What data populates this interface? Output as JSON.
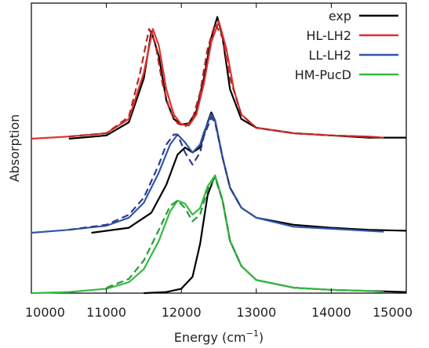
{
  "chart_data": {
    "type": "line",
    "xlabel": "Energy (cm",
    "xlabel_sup": "−1",
    "xlabel_close": ")",
    "ylabel": "Absorption",
    "xlim": [
      10000,
      15000
    ],
    "x_ticks": [
      10000,
      11000,
      12000,
      13000,
      14000,
      15000
    ],
    "x_tick_labels": [
      "10000",
      "11000",
      "12000",
      "13000",
      "14000",
      "15000"
    ],
    "y_ticks_shown": false,
    "grid": false,
    "legend_position": "top-right",
    "legend": [
      {
        "label": "exp",
        "color": "#000000"
      },
      {
        "label": "HL-LH2",
        "color": "#e03030"
      },
      {
        "label": "LL-LH2",
        "color": "#3355aa"
      },
      {
        "label": "HM-PucD",
        "color": "#33bb44"
      }
    ],
    "note": "Three vertically stacked spectra; y axis unscaled (arbitrary units). Solid = simulated, dashed = alternative simulation, black = experiment.",
    "series": [
      {
        "name": "exp",
        "panel": "HL-LH2",
        "color": "#000000",
        "style": "solid",
        "x": [
          10500,
          11000,
          11300,
          11500,
          11600,
          11700,
          11800,
          11900,
          12000,
          12100,
          12200,
          12300,
          12400,
          12480,
          12550,
          12650,
          12800,
          13000,
          13500,
          14000,
          14500,
          15000
        ],
        "y": [
          0.0,
          0.03,
          0.15,
          0.55,
          0.98,
          0.75,
          0.35,
          0.18,
          0.13,
          0.14,
          0.25,
          0.55,
          0.92,
          1.11,
          0.92,
          0.45,
          0.18,
          0.1,
          0.05,
          0.03,
          0.01,
          0.01
        ]
      },
      {
        "name": "HL-LH2",
        "panel": "HL-LH2",
        "color": "#e03030",
        "style": "solid",
        "x": [
          10000,
          10500,
          11000,
          11300,
          11500,
          11620,
          11700,
          11800,
          11900,
          12000,
          12100,
          12200,
          12300,
          12400,
          12500,
          12600,
          12700,
          12800,
          13000,
          13500,
          14000,
          14500,
          14700
        ],
        "y": [
          0.0,
          0.02,
          0.05,
          0.18,
          0.6,
          1.0,
          0.85,
          0.45,
          0.22,
          0.13,
          0.12,
          0.22,
          0.5,
          0.88,
          1.07,
          0.82,
          0.45,
          0.22,
          0.1,
          0.05,
          0.03,
          0.02,
          0.01
        ]
      },
      {
        "name": "HL-LH2 (dashed)",
        "panel": "HL-LH2",
        "color": "#b02828",
        "style": "dashed",
        "x": [
          10500,
          11000,
          11300,
          11450,
          11570,
          11650,
          11750,
          11850,
          11950,
          12050,
          12150,
          12250,
          12350,
          12450,
          12550,
          12650,
          12800,
          13000,
          13500,
          14000,
          14700
        ],
        "y": [
          0.02,
          0.05,
          0.2,
          0.6,
          1.0,
          0.88,
          0.5,
          0.25,
          0.14,
          0.11,
          0.18,
          0.42,
          0.82,
          1.05,
          0.92,
          0.55,
          0.22,
          0.1,
          0.05,
          0.03,
          0.01
        ]
      },
      {
        "name": "exp",
        "panel": "LL-LH2",
        "color": "#000000",
        "style": "solid",
        "x": [
          10800,
          11300,
          11600,
          11800,
          11950,
          12050,
          12150,
          12250,
          12350,
          12400,
          12450,
          12550,
          12650,
          12800,
          13000,
          13500,
          14000,
          14500,
          15000
        ],
        "y": [
          0.0,
          0.05,
          0.2,
          0.48,
          0.78,
          0.85,
          0.8,
          0.85,
          1.1,
          1.2,
          1.12,
          0.75,
          0.45,
          0.25,
          0.15,
          0.08,
          0.05,
          0.03,
          0.02
        ]
      },
      {
        "name": "LL-LH2",
        "panel": "LL-LH2",
        "color": "#3355aa",
        "style": "solid",
        "x": [
          10000,
          10500,
          11000,
          11300,
          11500,
          11700,
          11850,
          11950,
          12050,
          12150,
          12250,
          12300,
          12400,
          12450,
          12550,
          12650,
          12800,
          13000,
          13500,
          14000,
          14700
        ],
        "y": [
          0.0,
          0.03,
          0.07,
          0.15,
          0.3,
          0.6,
          0.88,
          0.98,
          0.9,
          0.8,
          0.88,
          1.0,
          1.18,
          1.12,
          0.75,
          0.45,
          0.25,
          0.15,
          0.06,
          0.04,
          0.01
        ]
      },
      {
        "name": "LL-LH2 (dashed)",
        "panel": "LL-LH2",
        "color": "#2a3f88",
        "style": "dashed",
        "x": [
          10500,
          11000,
          11300,
          11500,
          11700,
          11800,
          11900,
          11950,
          12050,
          12150,
          12250,
          12300,
          12400,
          12450,
          12550,
          12650,
          12800
        ],
        "y": [
          0.03,
          0.08,
          0.18,
          0.35,
          0.68,
          0.88,
          0.98,
          0.98,
          0.8,
          0.68,
          0.8,
          0.96,
          1.15,
          1.1,
          0.75,
          0.45,
          0.25
        ]
      },
      {
        "name": "exp",
        "panel": "HM-PucD",
        "color": "#000000",
        "style": "solid",
        "x": [
          11500,
          11800,
          12000,
          12150,
          12250,
          12350,
          12450,
          12550,
          12650,
          12800,
          13000,
          13500,
          14000,
          14500,
          15000
        ],
        "y": [
          0.0,
          0.01,
          0.04,
          0.15,
          0.45,
          0.9,
          1.08,
          0.85,
          0.48,
          0.25,
          0.12,
          0.05,
          0.03,
          0.02,
          0.01
        ]
      },
      {
        "name": "HM-PucD",
        "panel": "HM-PucD",
        "color": "#33bb44",
        "style": "solid",
        "x": [
          10000,
          10500,
          11000,
          11300,
          11500,
          11700,
          11850,
          11950,
          12050,
          12150,
          12250,
          12350,
          12450,
          12550,
          12650,
          12800,
          13000,
          13500,
          14000,
          14500,
          14700
        ],
        "y": [
          0.0,
          0.01,
          0.04,
          0.1,
          0.22,
          0.48,
          0.75,
          0.85,
          0.82,
          0.72,
          0.78,
          0.98,
          1.08,
          0.85,
          0.48,
          0.25,
          0.12,
          0.05,
          0.03,
          0.02,
          0.01
        ]
      },
      {
        "name": "HM-PucD (dashed)",
        "panel": "HM-PucD",
        "color": "#2a9a38",
        "style": "dashed",
        "x": [
          11000,
          11300,
          11500,
          11700,
          11850,
          11950,
          12050,
          12150,
          12250,
          12350,
          12450,
          12550,
          12650,
          12800
        ],
        "y": [
          0.05,
          0.13,
          0.3,
          0.58,
          0.8,
          0.85,
          0.78,
          0.66,
          0.72,
          0.95,
          1.06,
          0.85,
          0.48,
          0.25
        ]
      }
    ]
  }
}
